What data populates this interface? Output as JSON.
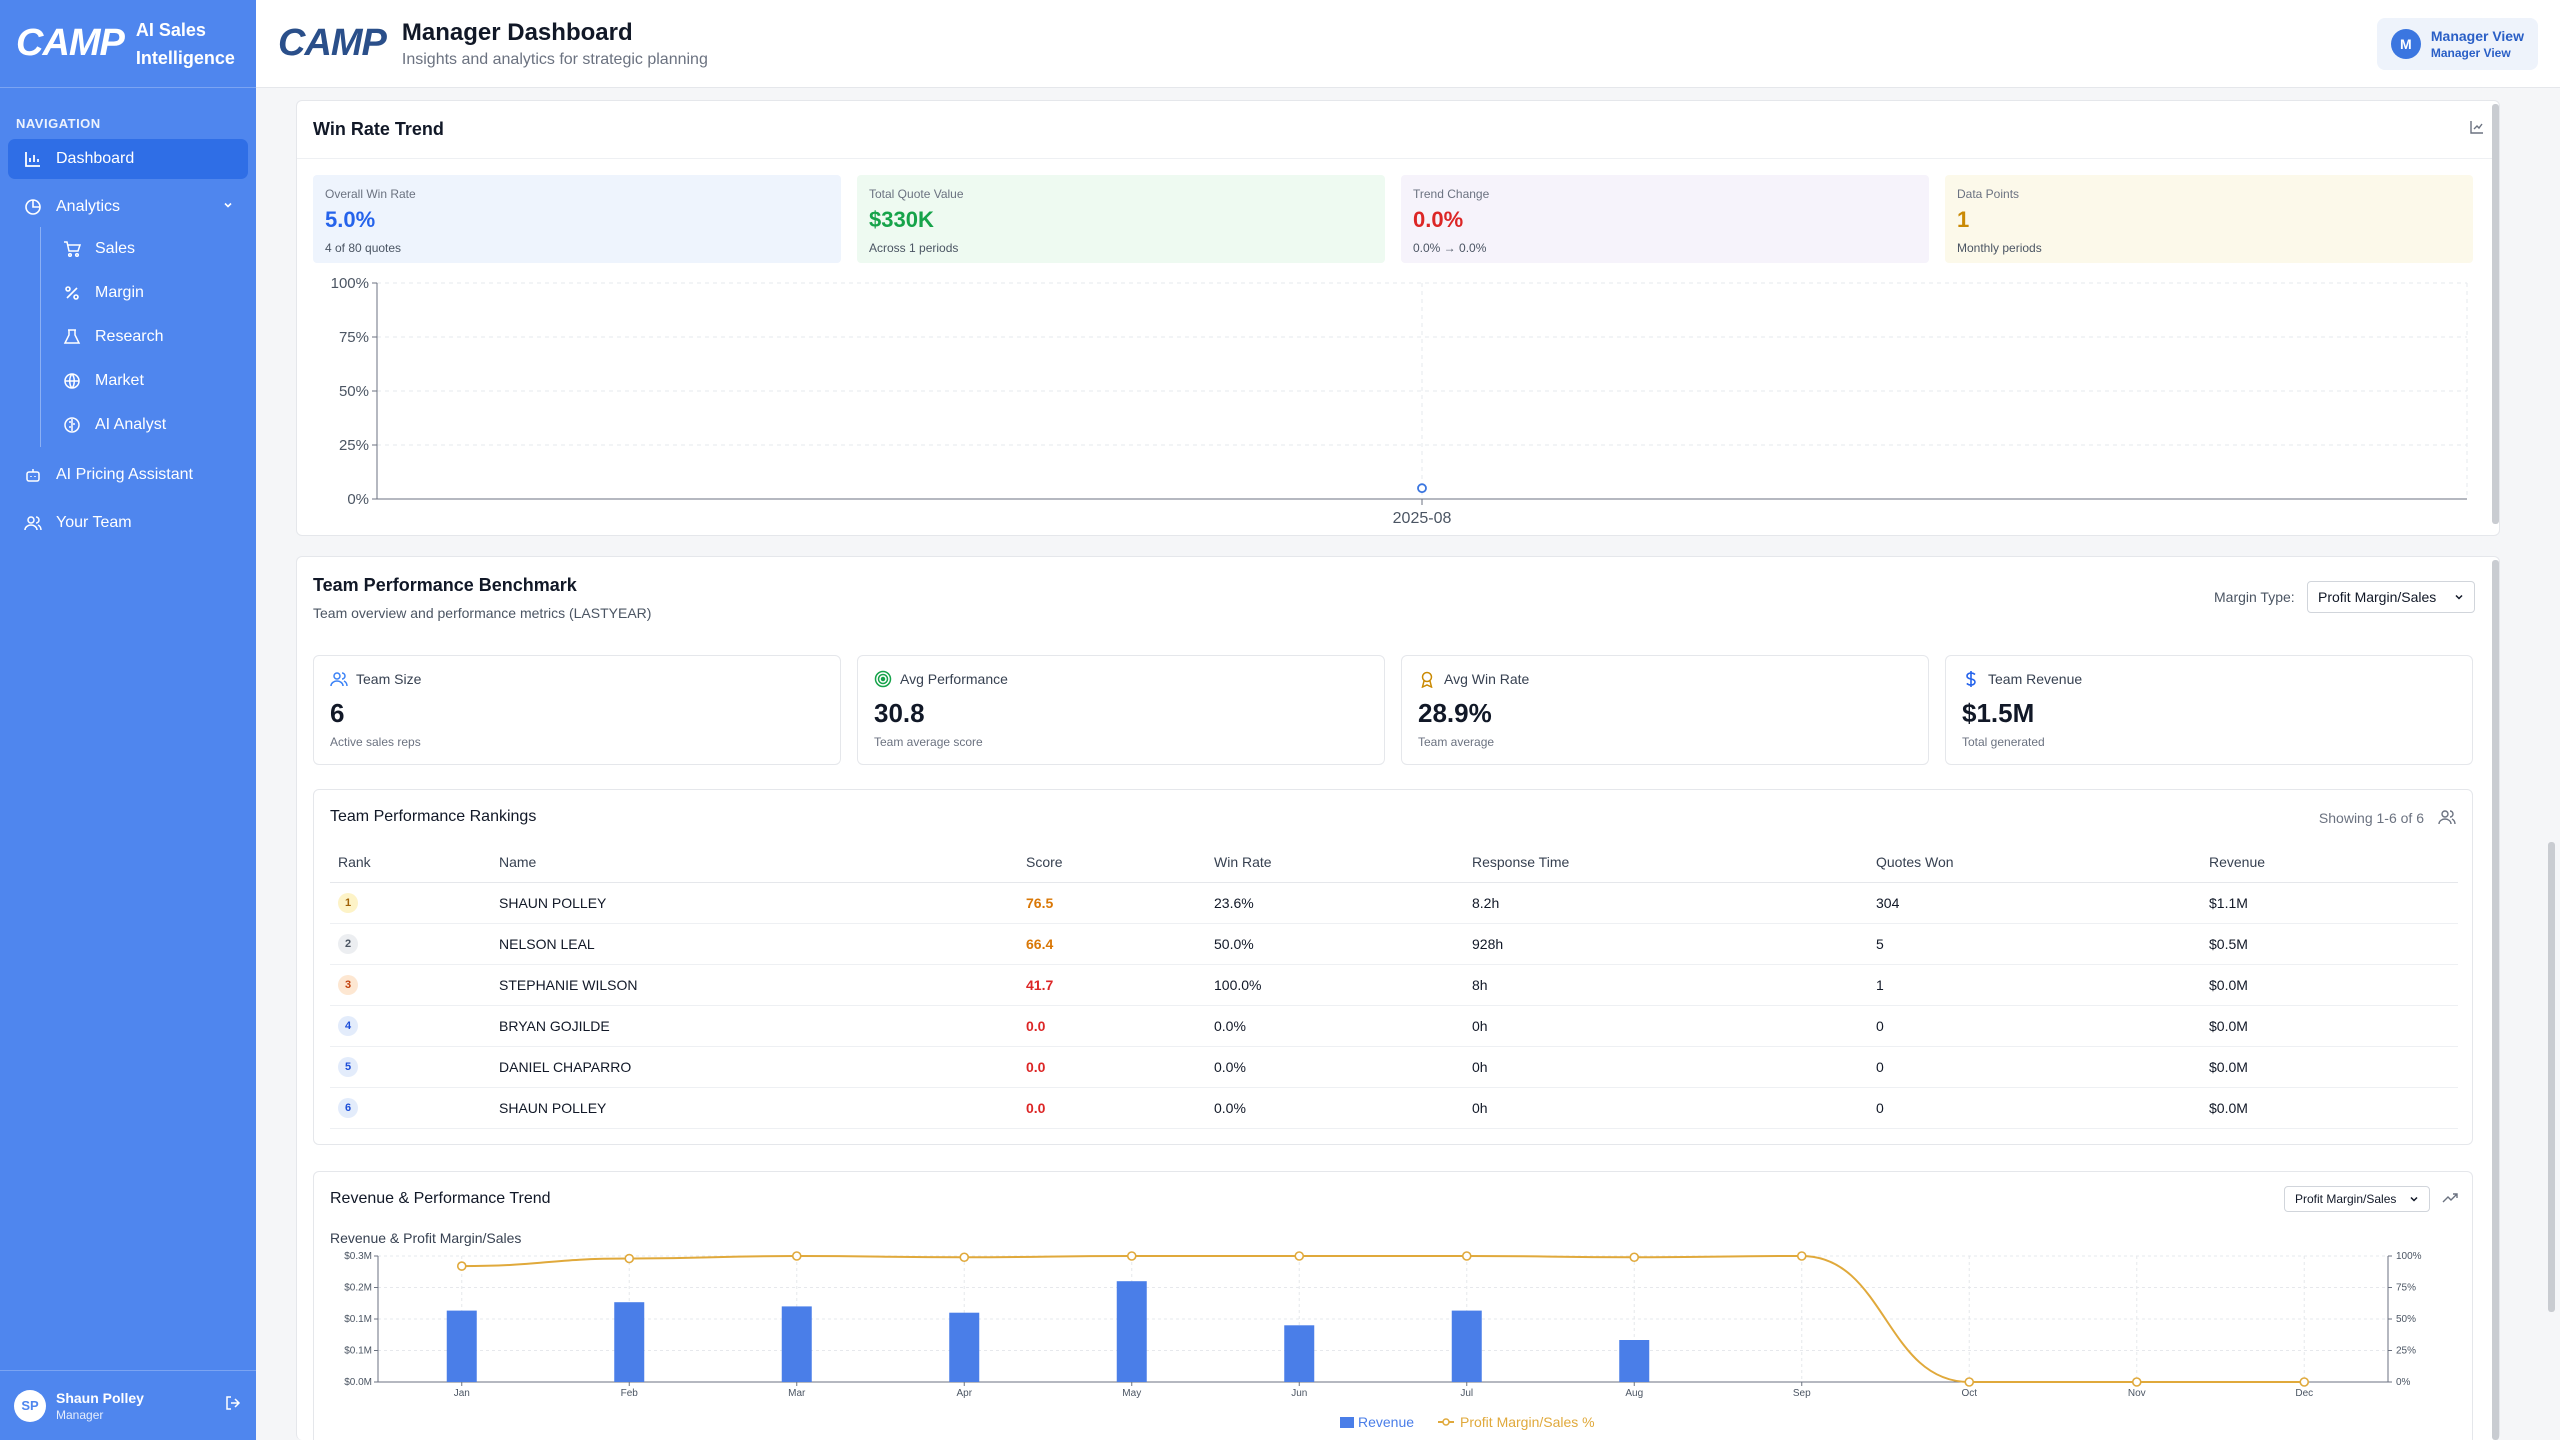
{
  "sidebar": {
    "logo": "CAMP",
    "brand_line1": "AI Sales",
    "brand_line2": "Intelligence",
    "nav_heading": "NAVIGATION",
    "items": {
      "dashboard": "Dashboard",
      "analytics": "Analytics",
      "sales": "Sales",
      "margin": "Margin",
      "research": "Research",
      "market": "Market",
      "ai_analyst": "AI Analyst",
      "ai_pricing": "AI Pricing Assistant",
      "your_team": "Your Team"
    },
    "user": {
      "initials": "SP",
      "name": "Shaun Polley",
      "role": "Manager"
    }
  },
  "header": {
    "logo": "CAMP",
    "title": "Manager Dashboard",
    "subtitle": "Insights and analytics for strategic planning",
    "view_initial": "M",
    "view_line1": "Manager View",
    "view_line2": "Manager View"
  },
  "win_rate": {
    "title": "Win Rate Trend",
    "stats": [
      {
        "label": "Overall Win Rate",
        "value": "5.0%",
        "note": "4 of 80 quotes",
        "color": "#2563eb",
        "bg": "#eef4fd"
      },
      {
        "label": "Total Quote Value",
        "value": "$330K",
        "note": "Across 1 periods",
        "color": "#16a34a",
        "bg": "#eefaf1"
      },
      {
        "label": "Trend Change",
        "value": "0.0%",
        "note": "0.0% → 0.0%",
        "color": "#dc2626",
        "bg": "#f6f3fb"
      },
      {
        "label": "Data Points",
        "value": "1",
        "note": "Monthly periods",
        "color": "#ca8a04",
        "bg": "#fcf9ea"
      }
    ],
    "chart_data": {
      "type": "line",
      "x": [
        "2025-08"
      ],
      "series": [
        {
          "values": [
            5.0
          ]
        }
      ],
      "yticks": [
        "0%",
        "25%",
        "50%",
        "75%",
        "100%"
      ],
      "ylim": [
        0,
        100
      ]
    }
  },
  "team": {
    "title": "Team Performance Benchmark",
    "subtitle": "Team overview and performance metrics (LASTYEAR)",
    "margin_type_label": "Margin Type:",
    "margin_type_value": "Profit Margin/Sales",
    "kpis": [
      {
        "label": "Team Size",
        "value": "6",
        "note": "Active sales reps",
        "icon": "users-icon",
        "color": "#3b82f6"
      },
      {
        "label": "Avg Performance",
        "value": "30.8",
        "note": "Team average score",
        "icon": "target-icon",
        "color": "#16a34a"
      },
      {
        "label": "Avg Win Rate",
        "value": "28.9%",
        "note": "Team average",
        "icon": "award-icon",
        "color": "#ca8a04"
      },
      {
        "label": "Team Revenue",
        "value": "$1.5M",
        "note": "Total generated",
        "icon": "dollar-icon",
        "color": "#2563eb"
      }
    ],
    "rankings": {
      "title": "Team Performance Rankings",
      "showing": "Showing 1-6 of 6",
      "columns": [
        "Rank",
        "Name",
        "Score",
        "Win Rate",
        "Response Time",
        "Quotes Won",
        "Revenue"
      ],
      "rows": [
        {
          "rank": "1",
          "name": "SHAUN POLLEY",
          "score": "76.5",
          "win": "23.6%",
          "resp": "8.2h",
          "won": "304",
          "rev": "$1.1M",
          "score_color": "#d97706",
          "badge_bg": "#fdf3c7",
          "badge_fg": "#a16207"
        },
        {
          "rank": "2",
          "name": "NELSON LEAL",
          "score": "66.4",
          "win": "50.0%",
          "resp": "928h",
          "won": "5",
          "rev": "$0.5M",
          "score_color": "#d97706",
          "badge_bg": "#eceef1",
          "badge_fg": "#4b5563"
        },
        {
          "rank": "3",
          "name": "STEPHANIE WILSON",
          "score": "41.7",
          "win": "100.0%",
          "resp": "8h",
          "won": "1",
          "rev": "$0.0M",
          "score_color": "#dc2626",
          "badge_bg": "#fde7d2",
          "badge_fg": "#c2410c"
        },
        {
          "rank": "4",
          "name": "BRYAN GOJILDE",
          "score": "0.0",
          "win": "0.0%",
          "resp": "0h",
          "won": "0",
          "rev": "$0.0M",
          "score_color": "#dc2626",
          "badge_bg": "#e3ecfb",
          "badge_fg": "#1d4ed8"
        },
        {
          "rank": "5",
          "name": "DANIEL CHAPARRO",
          "score": "0.0",
          "win": "0.0%",
          "resp": "0h",
          "won": "0",
          "rev": "$0.0M",
          "score_color": "#dc2626",
          "badge_bg": "#e3ecfb",
          "badge_fg": "#1d4ed8"
        },
        {
          "rank": "6",
          "name": "SHAUN POLLEY",
          "score": "0.0",
          "win": "0.0%",
          "resp": "0h",
          "won": "0",
          "rev": "$0.0M",
          "score_color": "#dc2626",
          "badge_bg": "#e3ecfb",
          "badge_fg": "#1d4ed8"
        }
      ]
    }
  },
  "revenue": {
    "title": "Revenue & Performance Trend",
    "select_value": "Profit Margin/Sales",
    "chart_data": {
      "type": "bar",
      "title": "Revenue & Profit Margin/Sales",
      "categories": [
        "Jan",
        "Feb",
        "Mar",
        "Apr",
        "May",
        "Jun",
        "Jul",
        "Aug",
        "Sep",
        "Oct",
        "Nov",
        "Dec"
      ],
      "series": [
        {
          "name": "Revenue",
          "type": "bar",
          "values": [
            0.17,
            0.19,
            0.18,
            0.165,
            0.24,
            0.135,
            0.17,
            0.1,
            0.0,
            0.0,
            0.0,
            0.0
          ],
          "color": "#4a7ee8"
        },
        {
          "name": "Profit Margin/Sales %",
          "type": "line",
          "values": [
            92,
            98,
            102,
            99,
            101,
            101,
            101,
            99,
            102,
            0,
            0,
            0
          ],
          "color": "#e0a93b"
        }
      ],
      "y_left_ticks": [
        "$0.0M",
        "$0.1M",
        "$0.1M",
        "$0.2M",
        "$0.3M"
      ],
      "y_right_ticks": [
        "0%",
        "25%",
        "50%",
        "75%",
        "100%"
      ],
      "ylim_left": [
        0,
        0.3
      ],
      "ylim_right": [
        0,
        100
      ]
    }
  }
}
